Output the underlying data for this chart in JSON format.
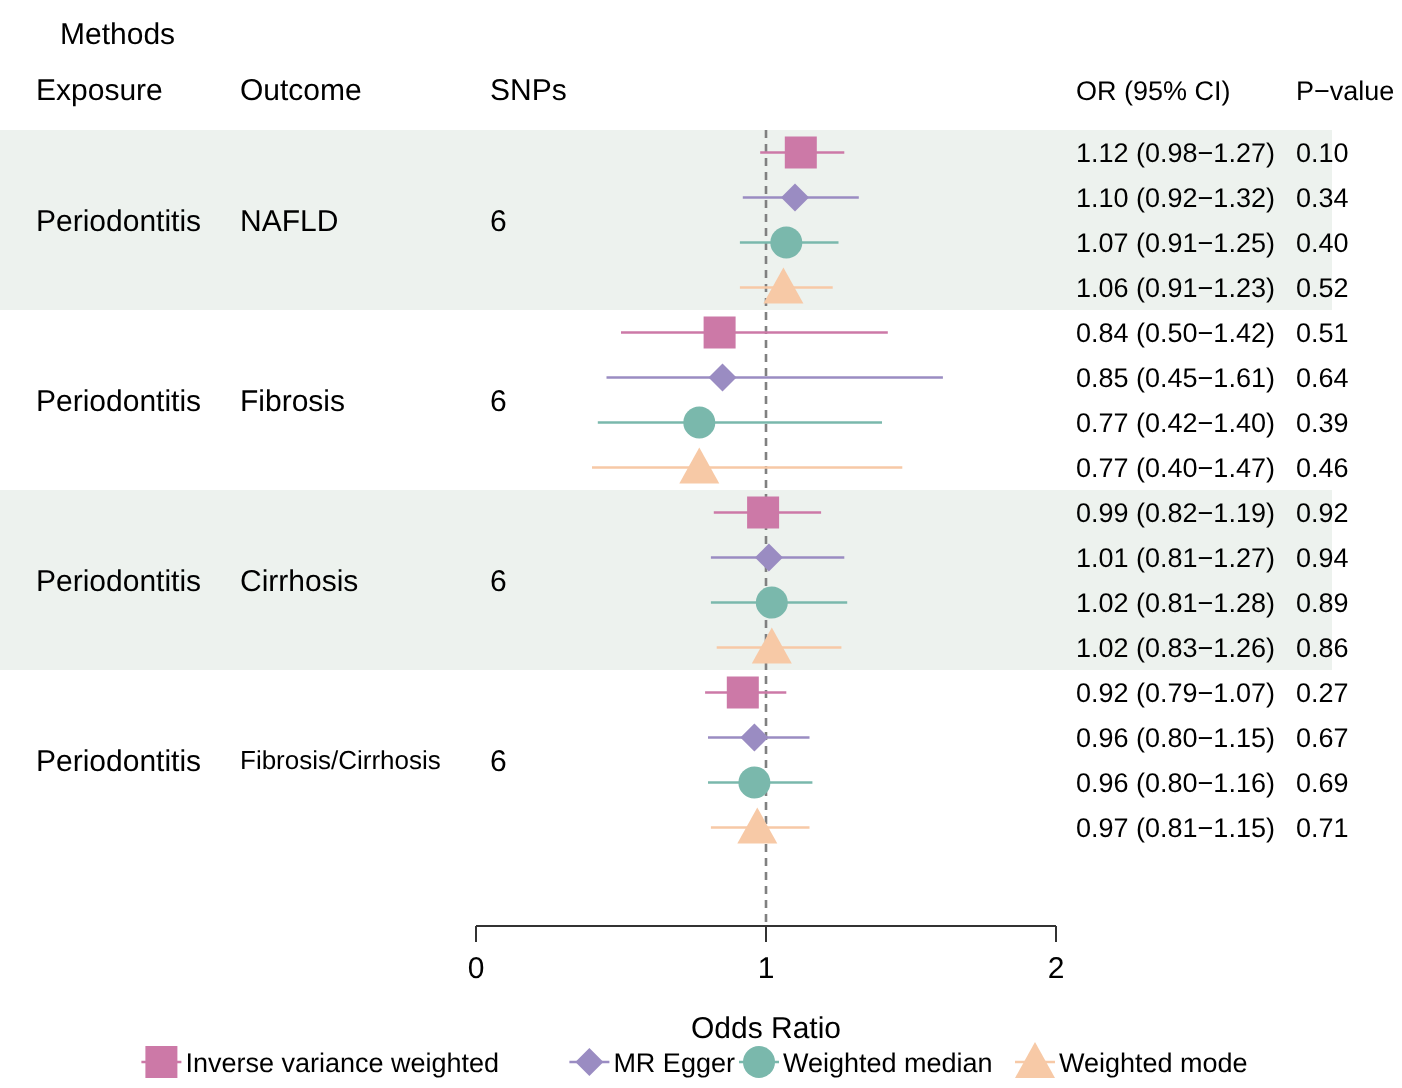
{
  "chart_data": {
    "type": "scatter",
    "orientation": "horizontal",
    "xlabel": "Odds Ratio",
    "categories": [
      "NAFLD",
      "Fibrosis",
      "Cirrhosis",
      "Fibrosis/Cirrhosis"
    ],
    "xlim": [
      0,
      2
    ],
    "xticks": [
      0,
      1,
      2
    ],
    "grid": false,
    "legend": "bottom",
    "ref_lines": [
      {
        "axis": "x",
        "value": 1,
        "color": "#808080",
        "line_style": "dashed"
      }
    ],
    "bands": [
      {
        "axis": "y",
        "from": "NAFLD",
        "to": "NAFLD",
        "color": "#edf2ee"
      },
      {
        "axis": "y",
        "from": "Cirrhosis",
        "to": "Cirrhosis",
        "color": "#edf2ee"
      }
    ],
    "series": [
      {
        "name": "Inverse variance weighted",
        "color": "#cc79a7",
        "marker": "square",
        "values": [
          1.12,
          0.84,
          0.99,
          0.92
        ],
        "errors": [
          [
            0.98,
            1.27
          ],
          [
            0.5,
            1.42
          ],
          [
            0.82,
            1.19
          ],
          [
            0.79,
            1.07
          ]
        ]
      },
      {
        "name": "MR Egger",
        "color": "#9a8cc2",
        "marker": "diamond",
        "values": [
          1.1,
          0.85,
          1.01,
          0.96
        ],
        "errors": [
          [
            0.92,
            1.32
          ],
          [
            0.45,
            1.61
          ],
          [
            0.81,
            1.27
          ],
          [
            0.8,
            1.15
          ]
        ]
      },
      {
        "name": "Weighted median",
        "color": "#7ab8ac",
        "marker": "circle",
        "values": [
          1.07,
          0.77,
          1.02,
          0.96
        ],
        "errors": [
          [
            0.91,
            1.25
          ],
          [
            0.42,
            1.4
          ],
          [
            0.81,
            1.28
          ],
          [
            0.8,
            1.16
          ]
        ]
      },
      {
        "name": "Weighted mode",
        "color": "#f7c9a6",
        "marker": "triangle",
        "values": [
          1.06,
          0.77,
          1.02,
          0.97
        ],
        "errors": [
          [
            0.91,
            1.23
          ],
          [
            0.4,
            1.47
          ],
          [
            0.83,
            1.26
          ],
          [
            0.81,
            1.15
          ]
        ]
      }
    ],
    "annotations": [
      "Methods",
      "Exposure",
      "Outcome",
      "SNPs",
      "OR (95% CI)",
      "P−value",
      "Periodontitis",
      "6",
      "1.12 (0.98−1.27)",
      "0.10",
      "1.10 (0.92−1.32)",
      "0.34",
      "1.07 (0.91−1.25)",
      "0.40",
      "1.06 (0.91−1.23)",
      "0.52",
      "Periodontitis",
      "6",
      "0.84 (0.50−1.42)",
      "0.51",
      "0.85 (0.45−1.61)",
      "0.64",
      "0.77 (0.42−1.40)",
      "0.39",
      "0.77 (0.40−1.47)",
      "0.46",
      "Periodontitis",
      "6",
      "0.99 (0.82−1.19)",
      "0.92",
      "1.01 (0.81−1.27)",
      "0.94",
      "1.02 (0.81−1.28)",
      "0.89",
      "1.02 (0.83−1.26)",
      "0.86",
      "Periodontitis",
      "6",
      "0.92 (0.79−1.07)",
      "0.27",
      "0.96 (0.80−1.15)",
      "0.67",
      "0.96 (0.80−1.16)",
      "0.69",
      "0.97 (0.81−1.15)",
      "0.71"
    ]
  }
}
